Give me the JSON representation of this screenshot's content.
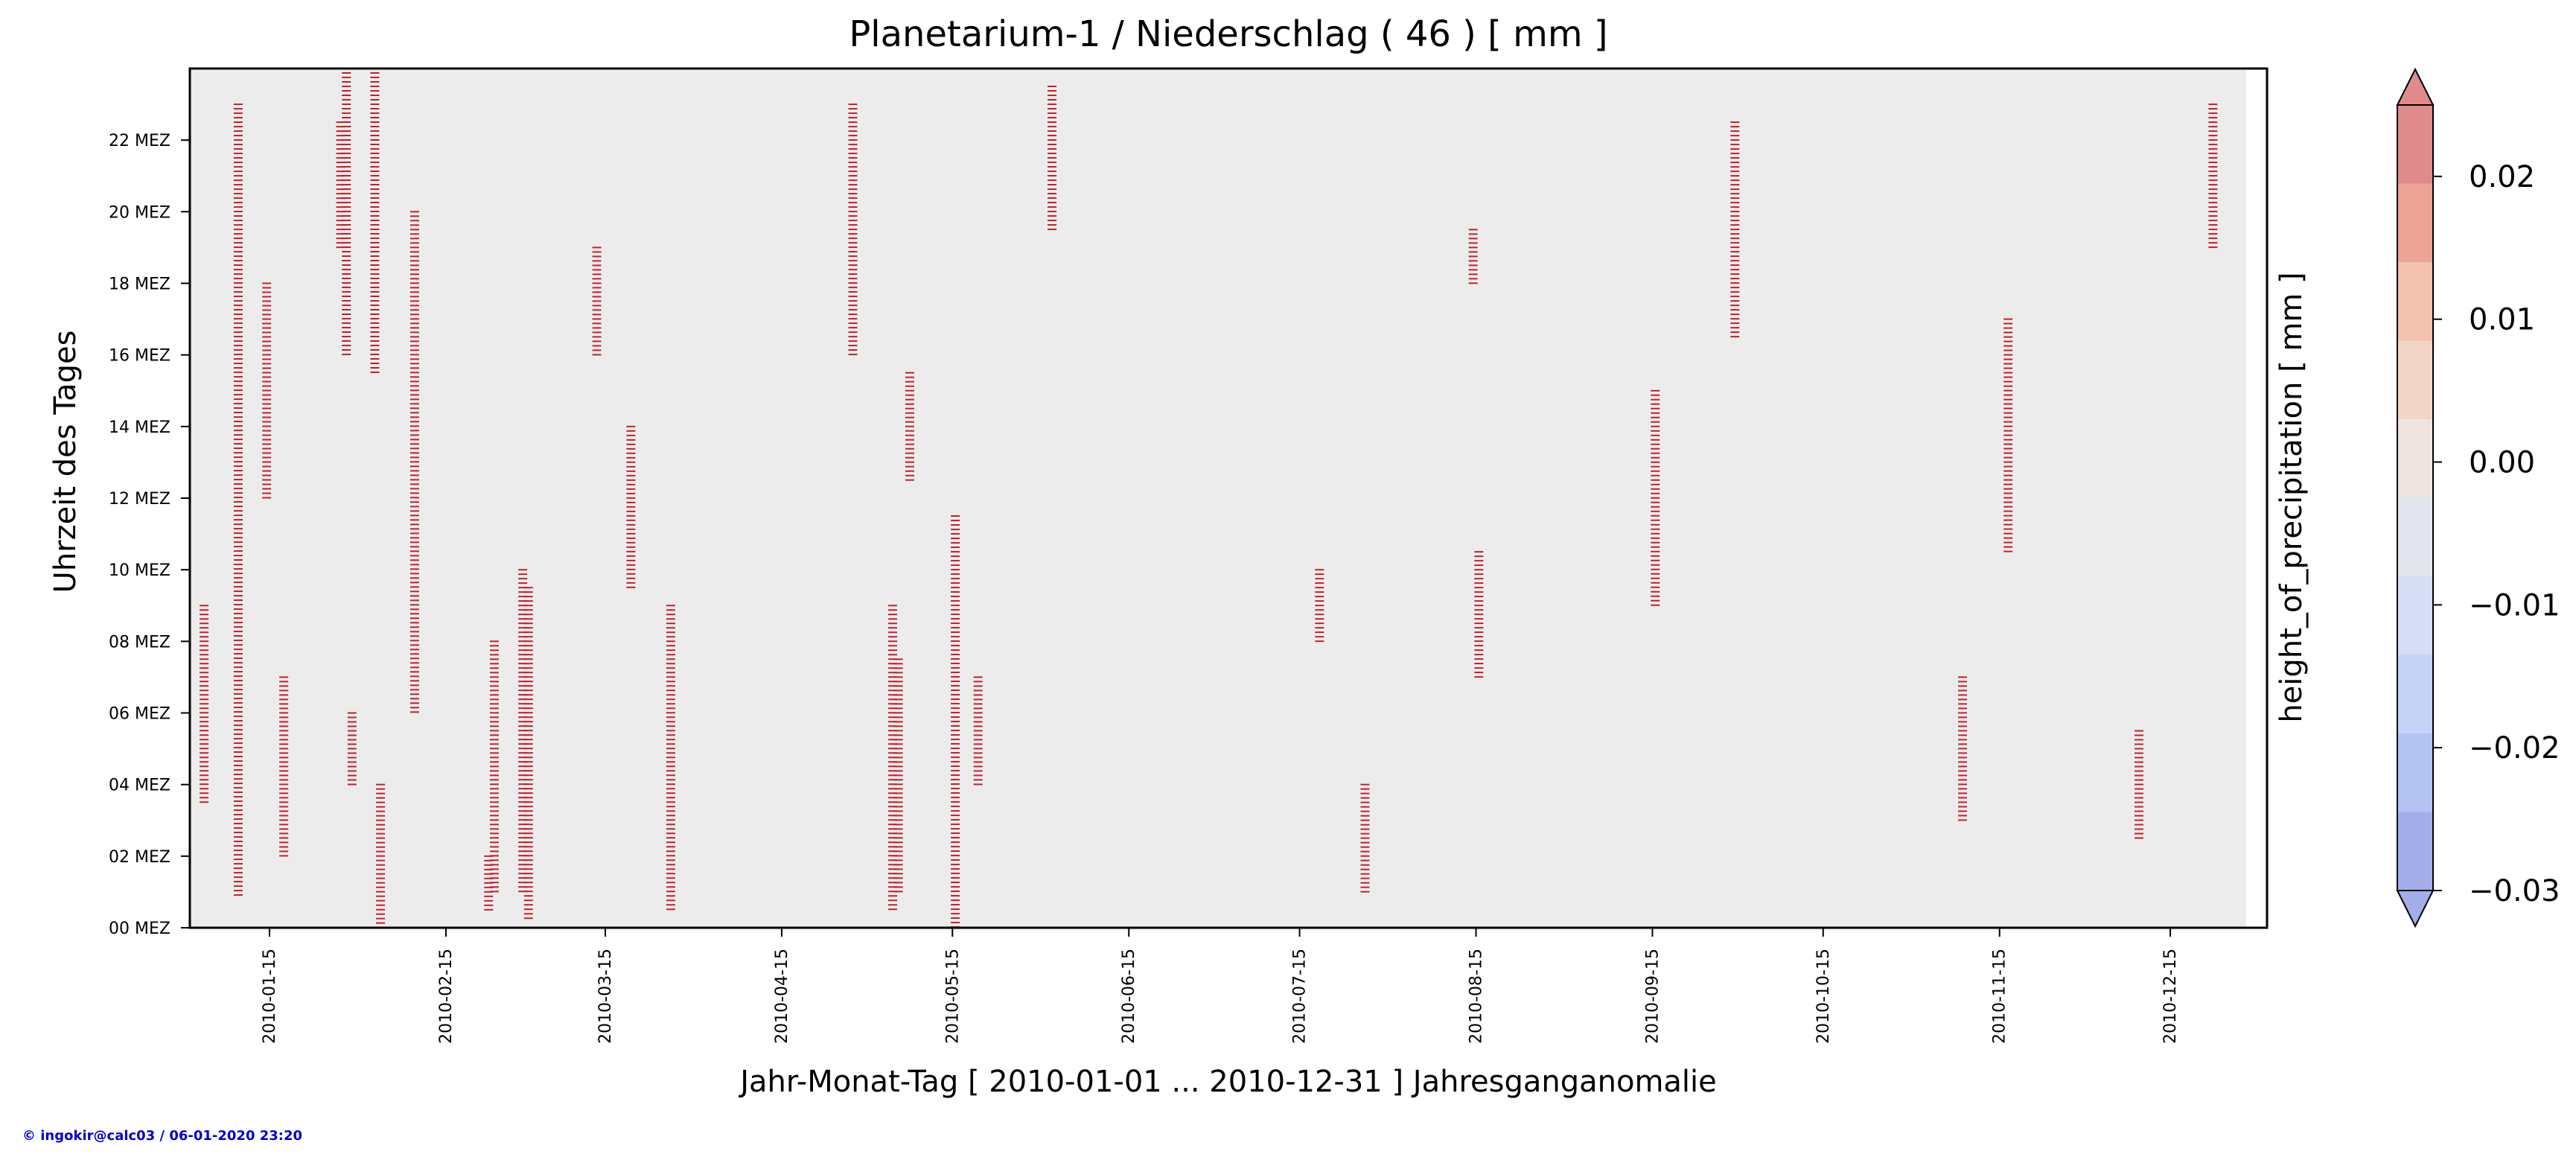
{
  "credit": "© ingokir@calc03 / 06-01-2020 23:20",
  "colors": {
    "plot_background": "#ececec",
    "mark_fill": "#e8a0a8",
    "mark_stroke": "#c0202c",
    "colorbar": [
      "#a3aee8",
      "#b4c3f2",
      "#c5d3f6",
      "#d5def4",
      "#e3e6ee",
      "#eee4e0",
      "#f3d5c8",
      "#f2c1af",
      "#eca497",
      "#df8b8b"
    ]
  },
  "chart_data": {
    "type": "heatmap",
    "title": "Planetarium-1 / Niederschlag ( 46 ) [ mm ]",
    "xlabel": "Jahr-Monat-Tag [ 2010-01-01 ... 2010-12-31 ] Jahresganganomalie",
    "ylabel": "Uhrzeit des Tages",
    "x_range": [
      "2010-01-01",
      "2010-12-31"
    ],
    "y_range": [
      0,
      24
    ],
    "x_ticks": [
      "2010-01-15",
      "2010-02-15",
      "2010-03-15",
      "2010-04-15",
      "2010-05-15",
      "2010-06-15",
      "2010-07-15",
      "2010-08-15",
      "2010-09-15",
      "2010-10-15",
      "2010-11-15",
      "2010-12-15"
    ],
    "y_ticks": [
      {
        "hour": 0,
        "label": "00 MEZ"
      },
      {
        "hour": 2,
        "label": "02 MEZ"
      },
      {
        "hour": 4,
        "label": "04 MEZ"
      },
      {
        "hour": 6,
        "label": "06 MEZ"
      },
      {
        "hour": 8,
        "label": "08 MEZ"
      },
      {
        "hour": 10,
        "label": "10 MEZ"
      },
      {
        "hour": 12,
        "label": "12 MEZ"
      },
      {
        "hour": 14,
        "label": "14 MEZ"
      },
      {
        "hour": 16,
        "label": "16 MEZ"
      },
      {
        "hour": 18,
        "label": "18 MEZ"
      },
      {
        "hour": 20,
        "label": "20 MEZ"
      },
      {
        "hour": 22,
        "label": "22 MEZ"
      }
    ],
    "colorbar": {
      "label": "height_of_precipitation [ mm ]",
      "min": -0.03,
      "max": 0.025,
      "extend": "both",
      "ticks": [
        {
          "value": 0.02,
          "label": "0.02"
        },
        {
          "value": 0.01,
          "label": "0.01"
        },
        {
          "value": 0.0,
          "label": "0.00"
        },
        {
          "value": -0.01,
          "label": "−0.01"
        },
        {
          "value": -0.02,
          "label": "−0.02"
        },
        {
          "value": -0.03,
          "label": "−0.03"
        }
      ]
    },
    "precip_events": [
      {
        "day": "2010-01-03",
        "hour_from": 3.5,
        "hour_to": 9.0
      },
      {
        "day": "2010-01-09",
        "hour_from": 0.8,
        "hour_to": 23.0
      },
      {
        "day": "2010-01-14",
        "hour_from": 12.0,
        "hour_to": 18.0
      },
      {
        "day": "2010-01-17",
        "hour_from": 2.0,
        "hour_to": 7.0
      },
      {
        "day": "2010-01-27",
        "hour_from": 19.0,
        "hour_to": 22.5
      },
      {
        "day": "2010-01-28",
        "hour_from": 16.0,
        "hour_to": 24.0
      },
      {
        "day": "2010-01-29",
        "hour_from": 4.0,
        "hour_to": 6.0
      },
      {
        "day": "2010-02-02",
        "hour_from": 15.5,
        "hour_to": 24.0
      },
      {
        "day": "2010-02-03",
        "hour_from": 0.0,
        "hour_to": 4.0
      },
      {
        "day": "2010-02-09",
        "hour_from": 6.0,
        "hour_to": 20.0
      },
      {
        "day": "2010-02-22",
        "hour_from": 0.5,
        "hour_to": 2.0
      },
      {
        "day": "2010-02-23",
        "hour_from": 1.0,
        "hour_to": 8.0
      },
      {
        "day": "2010-02-28",
        "hour_from": 1.0,
        "hour_to": 10.0
      },
      {
        "day": "2010-03-01",
        "hour_from": 0.2,
        "hour_to": 9.5
      },
      {
        "day": "2010-03-13",
        "hour_from": 16.0,
        "hour_to": 19.0
      },
      {
        "day": "2010-03-19",
        "hour_from": 9.5,
        "hour_to": 14.0
      },
      {
        "day": "2010-03-26",
        "hour_from": 0.5,
        "hour_to": 9.0
      },
      {
        "day": "2010-04-27",
        "hour_from": 16.0,
        "hour_to": 23.0
      },
      {
        "day": "2010-05-04",
        "hour_from": 0.5,
        "hour_to": 9.0
      },
      {
        "day": "2010-05-05",
        "hour_from": 1.0,
        "hour_to": 7.5
      },
      {
        "day": "2010-05-07",
        "hour_from": 12.5,
        "hour_to": 15.5
      },
      {
        "day": "2010-05-15",
        "hour_from": 0.0,
        "hour_to": 11.5
      },
      {
        "day": "2010-05-19",
        "hour_from": 4.0,
        "hour_to": 7.0
      },
      {
        "day": "2010-06-01",
        "hour_from": 19.5,
        "hour_to": 23.5
      },
      {
        "day": "2010-07-18",
        "hour_from": 8.0,
        "hour_to": 10.0
      },
      {
        "day": "2010-07-26",
        "hour_from": 1.0,
        "hour_to": 4.0
      },
      {
        "day": "2010-08-14",
        "hour_from": 18.0,
        "hour_to": 19.5
      },
      {
        "day": "2010-08-15",
        "hour_from": 7.0,
        "hour_to": 10.5
      },
      {
        "day": "2010-09-15",
        "hour_from": 9.0,
        "hour_to": 15.0
      },
      {
        "day": "2010-09-29",
        "hour_from": 16.5,
        "hour_to": 22.5
      },
      {
        "day": "2010-11-08",
        "hour_from": 3.0,
        "hour_to": 7.0
      },
      {
        "day": "2010-11-16",
        "hour_from": 10.5,
        "hour_to": 17.0
      },
      {
        "day": "2010-12-09",
        "hour_from": 2.5,
        "hour_to": 5.5
      },
      {
        "day": "2010-12-22",
        "hour_from": 19.0,
        "hour_to": 23.0
      }
    ]
  }
}
